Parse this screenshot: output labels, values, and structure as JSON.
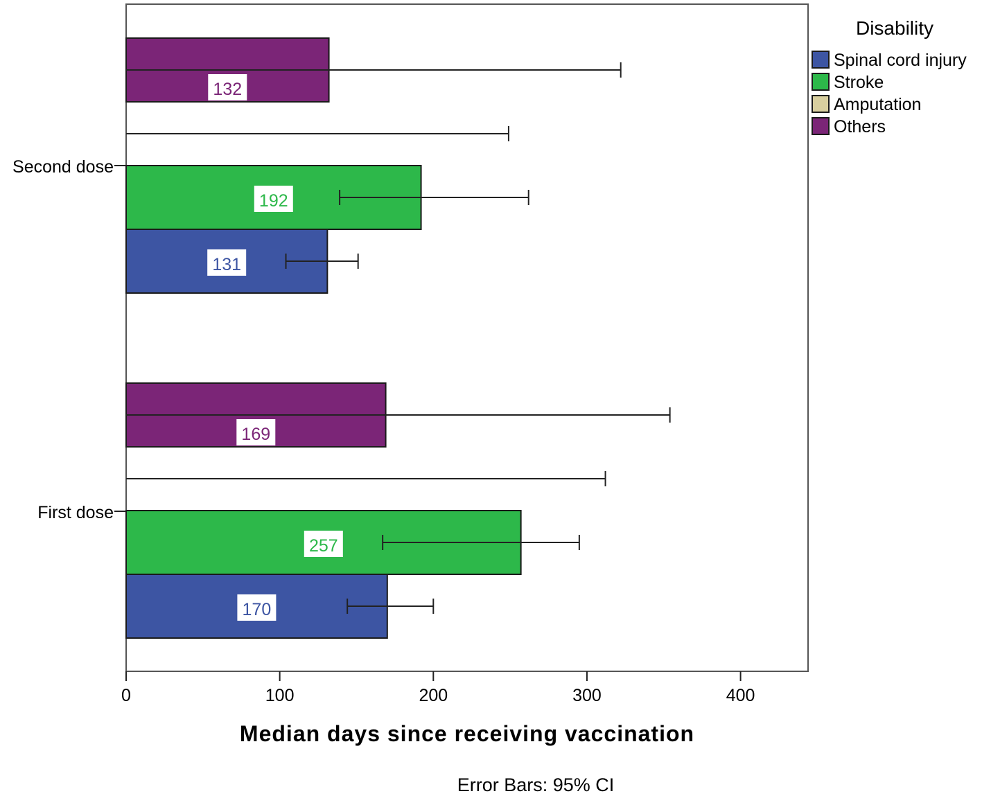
{
  "chart_data": {
    "type": "bar",
    "orientation": "horizontal",
    "categories": [
      "Second dose",
      "First dose"
    ],
    "xlabel": "Median days since receiving vaccination",
    "xlim": [
      0,
      445
    ],
    "xticks": [
      0,
      100,
      200,
      300,
      400
    ],
    "footnote": "Error Bars: 95% CI",
    "legend": {
      "title": "Disability",
      "position": "right",
      "entries": [
        "Spinal cord injury",
        "Stroke",
        "Amputation",
        "Others"
      ]
    },
    "series": [
      {
        "name": "Spinal cord injury",
        "color": "#3d55a3",
        "values": [
          131,
          170
        ],
        "labels": [
          "131",
          "170"
        ],
        "ci_low": [
          104,
          144
        ],
        "ci_high": [
          151,
          200
        ]
      },
      {
        "name": "Stroke",
        "color": "#2db84a",
        "values": [
          192,
          257
        ],
        "labels": [
          "192",
          "257"
        ],
        "ci_low": [
          139,
          167
        ],
        "ci_high": [
          262,
          295
        ]
      },
      {
        "name": "Amputation",
        "color": "#d8cf9f",
        "values": [
          0,
          0
        ],
        "labels": [
          "",
          ""
        ],
        "ci_low": [
          0,
          0
        ],
        "ci_high": [
          249,
          312
        ]
      },
      {
        "name": "Others",
        "color": "#7b2577",
        "values": [
          132,
          169
        ],
        "labels": [
          "132",
          "169"
        ],
        "ci_low": [
          0,
          0
        ],
        "ci_high": [
          322,
          354
        ]
      }
    ]
  }
}
